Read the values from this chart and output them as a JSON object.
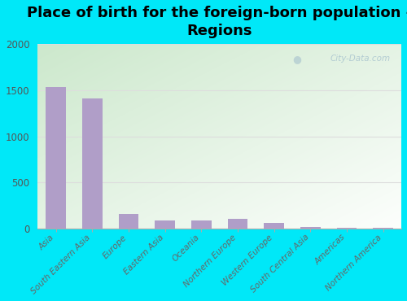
{
  "title": "Place of birth for the foreign-born population -\nRegions",
  "categories": [
    "Asia",
    "South Eastern Asia",
    "Europe",
    "Eastern Asia",
    "Oceania",
    "Northern Europe",
    "Western Europe",
    "South Central Asia",
    "Americas",
    "Northern America"
  ],
  "values": [
    1535,
    1410,
    155,
    88,
    92,
    105,
    60,
    18,
    7,
    9
  ],
  "bar_color": "#b09ec8",
  "background_outer": "#00e8f8",
  "ylim": [
    0,
    2000
  ],
  "yticks": [
    0,
    500,
    1000,
    1500,
    2000
  ],
  "title_fontsize": 13,
  "tick_label_fontsize": 7.5,
  "watermark": "City-Data.com",
  "grid_color": "#dddddd",
  "grad_top_left": "#c8e8c8",
  "grad_bottom_right": "#f0fbf0"
}
